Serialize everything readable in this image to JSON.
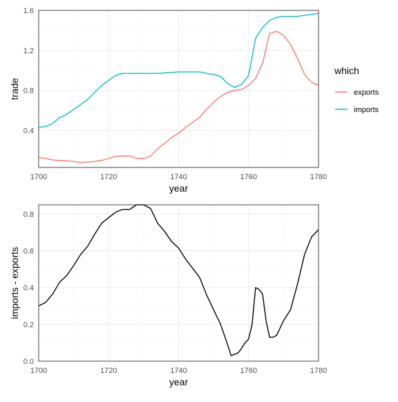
{
  "chart_data": [
    {
      "type": "line",
      "title": "",
      "xlabel": "year",
      "ylabel": "trade",
      "xlim": [
        1700,
        1780
      ],
      "ylim": [
        0.03,
        1.6
      ],
      "x_ticks": [
        1700,
        1720,
        1740,
        1760,
        1780
      ],
      "x_tick_labels": [
        "1700",
        "1720",
        "1740",
        "1760",
        "1780"
      ],
      "y_ticks": [
        0.4,
        0.8,
        1.2,
        1.6
      ],
      "y_tick_labels": [
        "0.4",
        "0.8",
        "1.2",
        "1.6"
      ],
      "grid": true,
      "legend": {
        "title": "which",
        "position": "right"
      },
      "x": [
        1700,
        1702,
        1704,
        1706,
        1708,
        1710,
        1712,
        1714,
        1716,
        1718,
        1720,
        1722,
        1724,
        1726,
        1728,
        1730,
        1732,
        1734,
        1736,
        1738,
        1740,
        1742,
        1744,
        1746,
        1748,
        1750,
        1752,
        1754,
        1756,
        1758,
        1760,
        1762,
        1764,
        1766,
        1768,
        1770,
        1772,
        1774,
        1776,
        1778,
        1780
      ],
      "series": [
        {
          "name": "exports",
          "color": "#F8766D",
          "values": [
            0.13,
            0.12,
            0.105,
            0.1,
            0.095,
            0.09,
            0.08,
            0.085,
            0.09,
            0.1,
            0.12,
            0.14,
            0.145,
            0.145,
            0.12,
            0.12,
            0.14,
            0.22,
            0.27,
            0.33,
            0.37,
            0.43,
            0.48,
            0.53,
            0.61,
            0.68,
            0.74,
            0.78,
            0.8,
            0.81,
            0.85,
            0.92,
            1.07,
            1.37,
            1.39,
            1.35,
            1.26,
            1.12,
            0.96,
            0.88,
            0.85
          ]
        },
        {
          "name": "imports",
          "color": "#00BFC4",
          "values": [
            0.43,
            0.44,
            0.47,
            0.53,
            0.56,
            0.61,
            0.66,
            0.71,
            0.78,
            0.85,
            0.9,
            0.95,
            0.97,
            0.97,
            0.97,
            0.97,
            0.97,
            0.97,
            0.975,
            0.98,
            0.985,
            0.985,
            0.985,
            0.985,
            0.97,
            0.96,
            0.94,
            0.87,
            0.83,
            0.86,
            0.95,
            1.32,
            1.43,
            1.5,
            1.53,
            1.54,
            1.54,
            1.54,
            1.55,
            1.56,
            1.57
          ]
        }
      ]
    },
    {
      "type": "line",
      "title": "",
      "xlabel": "year",
      "ylabel": "imports - exports",
      "xlim": [
        1700,
        1780
      ],
      "ylim": [
        0.0,
        0.85
      ],
      "x_ticks": [
        1700,
        1720,
        1740,
        1760,
        1780
      ],
      "x_tick_labels": [
        "1700",
        "1720",
        "1740",
        "1760",
        "1780"
      ],
      "y_ticks": [
        0.0,
        0.2,
        0.4,
        0.6,
        0.8
      ],
      "y_tick_labels": [
        "0.0",
        "0.2",
        "0.4",
        "0.6",
        "0.8"
      ],
      "grid": true,
      "x": [
        1700,
        1702,
        1704,
        1706,
        1708,
        1710,
        1712,
        1714,
        1716,
        1718,
        1720,
        1722,
        1724,
        1726,
        1728,
        1730,
        1732,
        1734,
        1736,
        1738,
        1740,
        1742,
        1744,
        1746,
        1748,
        1750,
        1752,
        1754,
        1755,
        1757,
        1758,
        1759,
        1760,
        1761,
        1762,
        1763,
        1764,
        1765,
        1766,
        1767,
        1768,
        1770,
        1772,
        1774,
        1776,
        1778,
        1780
      ],
      "series": [
        {
          "name": "",
          "color": "#000000",
          "values": [
            0.3,
            0.32,
            0.365,
            0.43,
            0.465,
            0.52,
            0.58,
            0.625,
            0.69,
            0.75,
            0.78,
            0.81,
            0.825,
            0.825,
            0.85,
            0.85,
            0.83,
            0.75,
            0.705,
            0.65,
            0.615,
            0.555,
            0.505,
            0.455,
            0.36,
            0.28,
            0.2,
            0.09,
            0.03,
            0.045,
            0.07,
            0.1,
            0.12,
            0.2,
            0.4,
            0.39,
            0.365,
            0.22,
            0.13,
            0.13,
            0.14,
            0.22,
            0.28,
            0.42,
            0.58,
            0.675,
            0.715
          ]
        }
      ]
    }
  ]
}
